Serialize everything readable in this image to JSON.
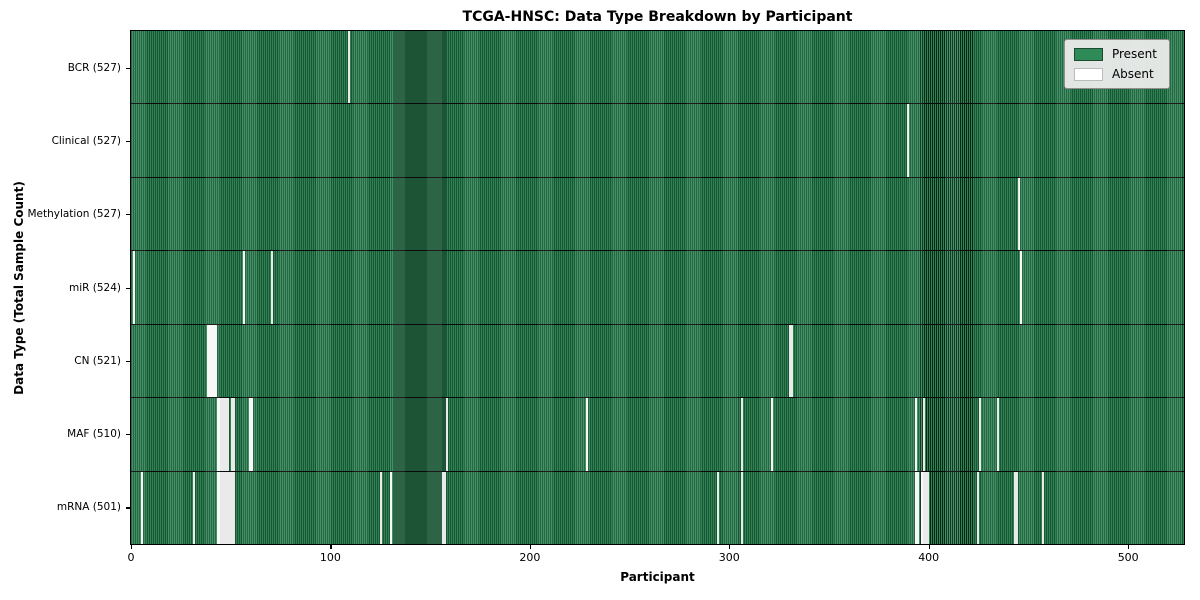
{
  "title": "TCGA-HNSC: Data Type Breakdown by Participant",
  "xlabel": "Participant",
  "ylabel": "Data Type (Total Sample Count)",
  "legend": {
    "present_label": "Present",
    "absent_label": "Absent"
  },
  "colors": {
    "present": "#2e8b57",
    "absent": "#f7f7f7",
    "cell_edge": "#000000",
    "legend_bg": "#ececec"
  },
  "chart_data": {
    "type": "heatmap",
    "title": "TCGA-HNSC: Data Type Breakdown by Participant",
    "xlabel": "Participant",
    "ylabel": "Data Type (Total Sample Count)",
    "legend_entries": [
      "Present",
      "Absent"
    ],
    "legend_position": "upper right",
    "n_participants": 528,
    "xlim": [
      0,
      528
    ],
    "x_ticks": [
      "0",
      "100",
      "200",
      "300",
      "400",
      "500"
    ],
    "x_tick_values": [
      0,
      100,
      200,
      300,
      400,
      500
    ],
    "rows": [
      {
        "label": "BCR (527)",
        "name": "bcr",
        "present_count": 527,
        "absent": [
          109
        ]
      },
      {
        "label": "Clinical (527)",
        "name": "clinical",
        "present_count": 527,
        "absent": [
          389
        ]
      },
      {
        "label": "Methylation (527)",
        "name": "methylation",
        "present_count": 527,
        "absent": [
          445
        ]
      },
      {
        "label": "miR (524)",
        "name": "mir",
        "present_count": 524,
        "absent": [
          1,
          56,
          70,
          446
        ]
      },
      {
        "label": "CN (521)",
        "name": "cn",
        "present_count": 521,
        "absent": [
          38,
          39,
          40,
          41,
          42,
          330,
          331
        ]
      },
      {
        "label": "MAF (510)",
        "name": "maf",
        "present_count": 510,
        "absent": [
          43,
          44,
          45,
          46,
          47,
          48,
          50,
          51,
          59,
          60,
          158,
          228,
          306,
          321,
          393,
          397,
          425,
          434
        ]
      },
      {
        "label": "mRNA (501)",
        "name": "mrna",
        "present_count": 501,
        "absent": [
          5,
          31,
          43,
          44,
          45,
          46,
          47,
          48,
          49,
          50,
          51,
          125,
          130,
          156,
          157,
          294,
          306,
          393,
          394,
          396,
          397,
          398,
          399,
          424,
          443,
          444,
          457
        ]
      }
    ]
  }
}
